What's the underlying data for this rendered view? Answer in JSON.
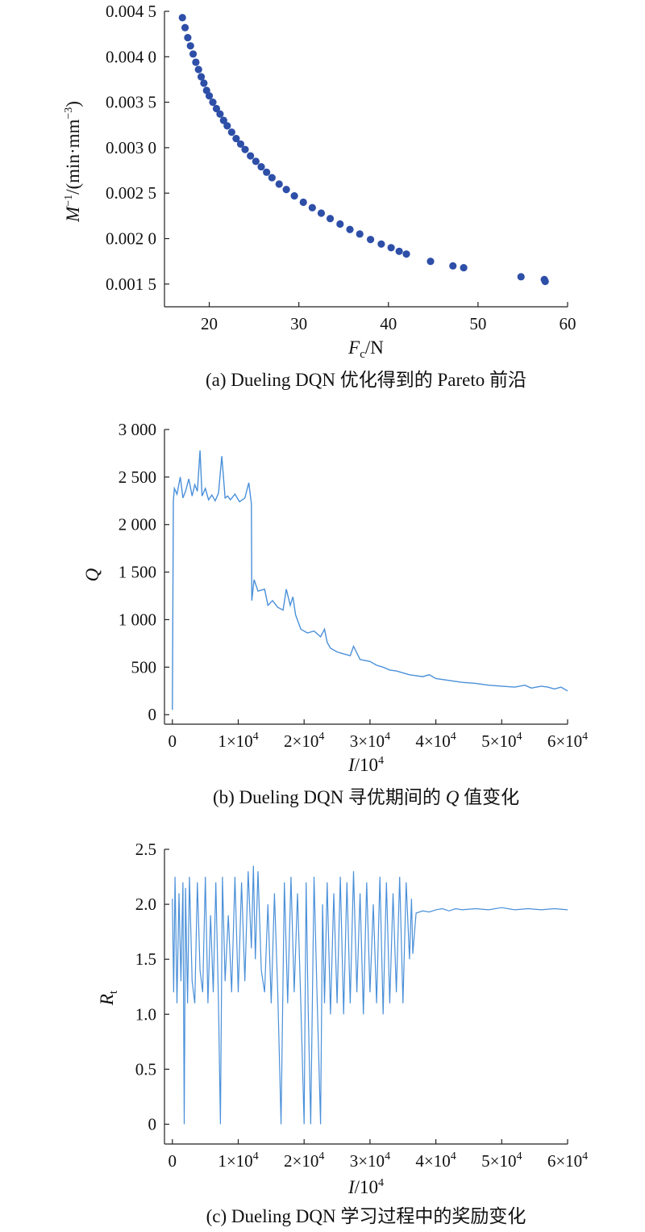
{
  "colors": {
    "scatter": "#2e4fa8",
    "line": "#4a90d9"
  },
  "chart_data": [
    {
      "type": "scatter",
      "caption": "(a) Dueling DQN 优化得到的 Pareto 前沿",
      "xlabel_main": "F",
      "xlabel_sub": "c",
      "xlabel_rest": "/N",
      "ylabel_main": "M",
      "ylabel_sup": "−1",
      "ylabel_rest": "/(min·mm",
      "ylabel_sup2": "−3",
      "ylabel_end": ")",
      "xlim": [
        15,
        60
      ],
      "ylim": [
        0.00125,
        0.0045
      ],
      "xticks": [
        20,
        30,
        40,
        50,
        60
      ],
      "xtick_labels": [
        "20",
        "30",
        "40",
        "50",
        "60"
      ],
      "yticks": [
        0.0015,
        0.002,
        0.0025,
        0.003,
        0.0035,
        0.004,
        0.0045
      ],
      "ytick_labels": [
        "0.001 5",
        "0.002 0",
        "0.002 5",
        "0.003 0",
        "0.003 5",
        "0.004 0",
        "0.004 5"
      ],
      "points": [
        [
          17.0,
          0.00443
        ],
        [
          17.3,
          0.00432
        ],
        [
          17.6,
          0.00421
        ],
        [
          17.9,
          0.00412
        ],
        [
          18.2,
          0.00403
        ],
        [
          18.5,
          0.00394
        ],
        [
          18.8,
          0.00386
        ],
        [
          19.1,
          0.00378
        ],
        [
          19.4,
          0.00371
        ],
        [
          19.7,
          0.00363
        ],
        [
          20.0,
          0.00357
        ],
        [
          20.4,
          0.0035
        ],
        [
          20.8,
          0.00343
        ],
        [
          21.2,
          0.00337
        ],
        [
          21.6,
          0.0033
        ],
        [
          22.0,
          0.00324
        ],
        [
          22.5,
          0.00317
        ],
        [
          23.0,
          0.0031
        ],
        [
          23.5,
          0.00304
        ],
        [
          24.0,
          0.00298
        ],
        [
          24.6,
          0.00291
        ],
        [
          25.2,
          0.00285
        ],
        [
          25.8,
          0.00279
        ],
        [
          26.4,
          0.00273
        ],
        [
          27.0,
          0.00267
        ],
        [
          27.8,
          0.0026
        ],
        [
          28.6,
          0.00254
        ],
        [
          29.5,
          0.00247
        ],
        [
          30.5,
          0.0024
        ],
        [
          31.5,
          0.00234
        ],
        [
          32.5,
          0.00228
        ],
        [
          33.5,
          0.00222
        ],
        [
          34.6,
          0.00216
        ],
        [
          35.7,
          0.0021
        ],
        [
          36.8,
          0.00205
        ],
        [
          38.0,
          0.00199
        ],
        [
          39.2,
          0.00194
        ],
        [
          40.3,
          0.0019
        ],
        [
          41.2,
          0.00186
        ],
        [
          42.0,
          0.00183
        ],
        [
          44.7,
          0.00175
        ],
        [
          47.2,
          0.0017
        ],
        [
          48.4,
          0.00168
        ],
        [
          54.8,
          0.00158
        ],
        [
          57.4,
          0.00155
        ],
        [
          57.5,
          0.00153
        ]
      ]
    },
    {
      "type": "line",
      "caption_pre": "(b) Dueling DQN 寻优期间的 ",
      "caption_q": "Q",
      "caption_post": " 值变化",
      "xlabel_main": "I",
      "xlabel_rest": "/10",
      "xlabel_sup": "4",
      "ylabel": "Q",
      "xlim": [
        -1200,
        60000
      ],
      "ylim": [
        -100,
        3000
      ],
      "xticks": [
        0,
        10000,
        20000,
        30000,
        40000,
        50000,
        60000
      ],
      "xtick_labels": [
        "0",
        "1×10",
        "2×10",
        "3×10",
        "4×10",
        "5×10",
        "6×10"
      ],
      "xtick_sup": "4",
      "yticks": [
        0,
        500,
        1000,
        1500,
        2000,
        2500,
        3000
      ],
      "ytick_labels": [
        "0",
        "500",
        "1 000",
        "1 500",
        "2 000",
        "2 500",
        "3 000"
      ],
      "x": [
        0,
        150,
        300,
        700,
        1200,
        1600,
        2000,
        2500,
        3000,
        3400,
        3800,
        4200,
        4500,
        5000,
        5500,
        6000,
        6500,
        7000,
        7500,
        8000,
        8400,
        8800,
        9500,
        10200,
        11000,
        11600,
        12000,
        12050,
        12400,
        13000,
        14000,
        14500,
        15200,
        16000,
        16800,
        17300,
        17900,
        18300,
        18700,
        19500,
        20500,
        21500,
        22500,
        23100,
        23500,
        24000,
        25000,
        26000,
        27000,
        27500,
        28500,
        30000,
        31000,
        32000,
        33000,
        34000,
        35000,
        36000,
        38000,
        39000,
        40000,
        42000,
        44000,
        46000,
        48000,
        50000,
        52000,
        53500,
        54500,
        56000,
        57000,
        58000,
        59000,
        60000
      ],
      "y": [
        50,
        2250,
        2380,
        2320,
        2500,
        2280,
        2350,
        2480,
        2300,
        2420,
        2350,
        2780,
        2300,
        2380,
        2260,
        2310,
        2250,
        2330,
        2720,
        2280,
        2300,
        2260,
        2320,
        2240,
        2280,
        2440,
        2220,
        1200,
        1420,
        1300,
        1320,
        1150,
        1200,
        1130,
        1100,
        1320,
        1150,
        1240,
        1050,
        900,
        860,
        880,
        820,
        900,
        760,
        700,
        660,
        640,
        620,
        720,
        580,
        560,
        520,
        500,
        470,
        460,
        440,
        420,
        400,
        420,
        380,
        360,
        340,
        330,
        310,
        300,
        290,
        310,
        280,
        300,
        290,
        270,
        290,
        250
      ]
    },
    {
      "type": "line",
      "caption": "(c) Dueling DQN 学习过程中的奖励变化",
      "xlabel_main": "I",
      "xlabel_rest": "/10",
      "xlabel_sup": "4",
      "ylabel_main": "R",
      "ylabel_sub": "t",
      "xlim": [
        -1200,
        60000
      ],
      "ylim": [
        -0.18,
        2.5
      ],
      "xticks": [
        0,
        10000,
        20000,
        30000,
        40000,
        50000,
        60000
      ],
      "xtick_labels": [
        "0",
        "1×10",
        "2×10",
        "3×10",
        "4×10",
        "5×10",
        "6×10"
      ],
      "xtick_sup": "4",
      "yticks": [
        0,
        0.5,
        1.0,
        1.5,
        2.0,
        2.5
      ],
      "ytick_labels": [
        "0",
        "0.5",
        "1.0",
        "1.5",
        "2.0",
        "2.5"
      ],
      "x": [
        0,
        200,
        400,
        700,
        1000,
        1300,
        1600,
        1800,
        2000,
        2300,
        2600,
        3000,
        3400,
        3800,
        4200,
        4600,
        5000,
        5400,
        5800,
        6200,
        6600,
        7000,
        7300,
        7600,
        8000,
        8500,
        9000,
        9500,
        10000,
        10500,
        11000,
        11500,
        12000,
        12300,
        12600,
        13000,
        13500,
        14000,
        14500,
        15000,
        15500,
        16000,
        16500,
        17000,
        17500,
        18000,
        18500,
        19000,
        19500,
        20000,
        20300,
        20600,
        21000,
        21500,
        22000,
        22500,
        22800,
        23100,
        23500,
        24000,
        24500,
        25000,
        25500,
        26000,
        26500,
        27000,
        27500,
        28000,
        28500,
        29000,
        29500,
        30000,
        30500,
        31000,
        31500,
        32000,
        32500,
        33000,
        33500,
        34000,
        34500,
        35000,
        35500,
        36000,
        36300,
        36500,
        37000,
        38000,
        39000,
        40000,
        41000,
        42000,
        43000,
        44000,
        46000,
        48000,
        50000,
        52000,
        54000,
        56000,
        58000,
        60000
      ],
      "y": [
        2.05,
        1.2,
        2.25,
        1.1,
        2.1,
        1.3,
        2.2,
        0.0,
        2.15,
        1.1,
        2.25,
        1.3,
        1.1,
        2.2,
        1.4,
        1.2,
        2.25,
        1.1,
        1.9,
        1.2,
        2.2,
        1.1,
        0.0,
        2.25,
        1.3,
        1.9,
        1.2,
        2.25,
        1.2,
        2.2,
        1.3,
        2.3,
        1.6,
        2.35,
        1.5,
        2.3,
        1.4,
        1.2,
        2.0,
        1.1,
        2.1,
        1.2,
        0.0,
        2.2,
        1.1,
        2.25,
        1.2,
        2.1,
        1.1,
        0.0,
        2.2,
        1.1,
        0.0,
        2.25,
        1.1,
        0.0,
        2.0,
        1.1,
        2.2,
        1.0,
        2.1,
        1.1,
        2.25,
        1.0,
        2.2,
        1.1,
        2.3,
        1.2,
        2.1,
        1.0,
        2.2,
        1.2,
        2.0,
        1.1,
        2.25,
        1.0,
        2.2,
        1.1,
        2.1,
        1.2,
        2.25,
        1.1,
        2.2,
        1.5,
        2.05,
        1.55,
        1.92,
        1.94,
        1.93,
        1.95,
        1.96,
        1.94,
        1.96,
        1.95,
        1.96,
        1.95,
        1.97,
        1.95,
        1.96,
        1.95,
        1.96,
        1.95
      ]
    }
  ]
}
